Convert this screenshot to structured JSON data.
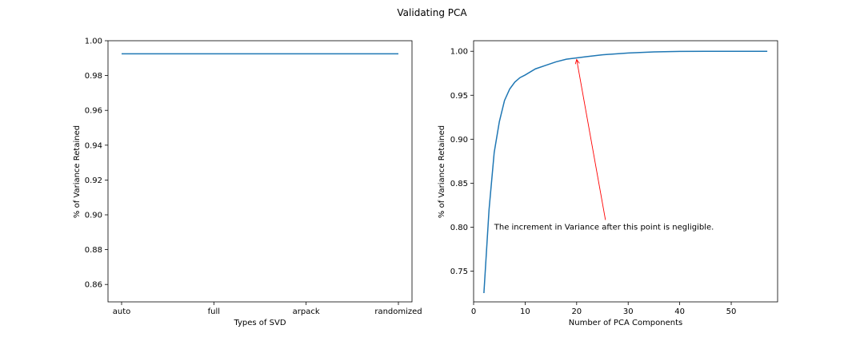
{
  "figure": {
    "suptitle": "Validating PCA"
  },
  "chart_data": [
    {
      "type": "line",
      "title": "",
      "xlabel": "Types of SVD",
      "ylabel": "% of Variance Retained",
      "categories": [
        "auto",
        "full",
        "arpack",
        "randomized"
      ],
      "series": [
        {
          "values": [
            0.9925,
            0.9925,
            0.9925,
            0.9925
          ],
          "color": "#1f77b4"
        }
      ],
      "ylim": [
        0.85,
        1.0
      ],
      "yticks": [
        0.86,
        0.88,
        0.9,
        0.92,
        0.94,
        0.96,
        0.98,
        1.0
      ],
      "ytick_labels": [
        "0.86",
        "0.88",
        "0.90",
        "0.92",
        "0.94",
        "0.96",
        "0.98",
        "1.00"
      ],
      "grid": false
    },
    {
      "type": "line",
      "title": "",
      "xlabel": "Number of PCA Components",
      "ylabel": "% of Variance Retained",
      "series": [
        {
          "color": "#1f77b4",
          "x": [
            2,
            3,
            4,
            5,
            6,
            7,
            8,
            9,
            10,
            12,
            14,
            16,
            18,
            20,
            22,
            25,
            30,
            35,
            40,
            45,
            50,
            57
          ],
          "y": [
            0.725,
            0.82,
            0.885,
            0.92,
            0.944,
            0.957,
            0.965,
            0.97,
            0.973,
            0.98,
            0.984,
            0.988,
            0.991,
            0.9925,
            0.994,
            0.996,
            0.998,
            0.9993,
            0.9998,
            1.0,
            1.0,
            1.0
          ]
        }
      ],
      "xlim": [
        0,
        59
      ],
      "ylim": [
        0.715,
        1.012
      ],
      "xticks": [
        0,
        10,
        20,
        30,
        40,
        50
      ],
      "xtick_labels": [
        "0",
        "10",
        "20",
        "30",
        "40",
        "50"
      ],
      "yticks": [
        0.75,
        0.8,
        0.85,
        0.9,
        0.95,
        1.0
      ],
      "ytick_labels": [
        "0.75",
        "0.80",
        "0.85",
        "0.90",
        "0.95",
        "1.00"
      ],
      "annotation": {
        "text": "The increment in Variance after this point is negligible.",
        "xy": [
          20,
          0.9925
        ],
        "xytext": [
          4,
          0.8
        ],
        "arrow_color": "#ff0000"
      },
      "grid": false
    }
  ]
}
